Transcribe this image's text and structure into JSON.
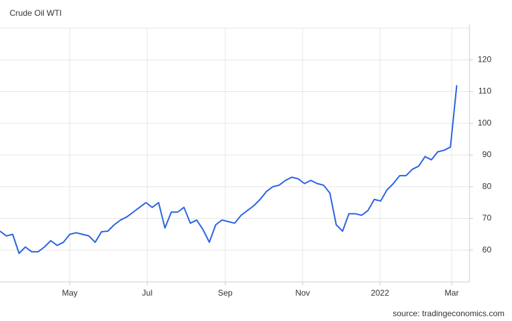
{
  "chart_data": {
    "type": "line",
    "title": "Crude Oil WTI",
    "source": "source: tradingeconomics.com",
    "series": [
      {
        "name": "Crude Oil WTI",
        "color": "#2b63e3",
        "values": [
          66,
          64.5,
          65,
          59,
          61,
          59.5,
          59.5,
          61,
          63,
          61.5,
          62.5,
          65,
          65.5,
          65,
          64.5,
          62.5,
          65.8,
          66,
          68,
          69.5,
          70.5,
          72,
          73.5,
          75,
          73.5,
          75,
          67,
          72,
          72,
          73.5,
          68.5,
          69.5,
          66.5,
          62.5,
          68,
          69.5,
          69,
          68.5,
          71,
          72.5,
          74,
          76,
          78.5,
          80,
          80.5,
          82,
          83,
          82.5,
          81,
          82,
          81,
          80.5,
          78,
          68,
          66,
          71.5,
          71.5,
          71,
          72.5,
          76,
          75.5,
          79,
          81,
          83.5,
          83.5,
          85.5,
          86.5,
          89.5,
          88.5,
          91,
          91.5,
          92.5,
          112
        ]
      }
    ],
    "xlim": [
      0,
      74
    ],
    "xticks": [
      {
        "value": 11,
        "label": "May"
      },
      {
        "value": 23.2,
        "label": "Jul"
      },
      {
        "value": 35.5,
        "label": "Sep"
      },
      {
        "value": 47.7,
        "label": "Nov"
      },
      {
        "value": 59.9,
        "label": "2022"
      },
      {
        "value": 71.2,
        "label": "Mar"
      }
    ],
    "ylim": [
      50,
      130
    ],
    "yticks": [
      60,
      70,
      80,
      90,
      100,
      110,
      120
    ],
    "grid": true
  }
}
